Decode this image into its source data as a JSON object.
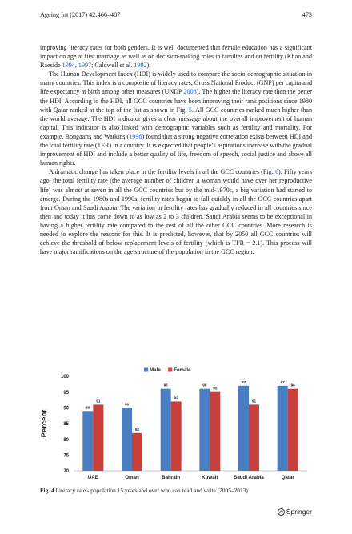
{
  "header": {
    "journal": "Ageing Int (2017) 42:466–487",
    "page": "473"
  },
  "paragraphs": [
    {
      "indent": false,
      "parts": [
        {
          "t": "improving literacy rates for both genders. It is well documented that female education has a significant impact on age at first marriage as well as on decision-making roles in families and on fertility (Khan and Raeside "
        },
        {
          "t": "1994",
          "link": true
        },
        {
          "t": ", "
        },
        {
          "t": "1997",
          "link": true
        },
        {
          "t": "; Caldwell et al. "
        },
        {
          "t": "1992",
          "link": true
        },
        {
          "t": ")."
        }
      ]
    },
    {
      "indent": true,
      "parts": [
        {
          "t": "The Human Development Index (HDI) is widely used to compare the socio-demographic situation in many countries. This index is a composite of literacy rates, Gross National Product (GNP) per capita and life expectancy at birth among other measures (UNDP "
        },
        {
          "t": "2008",
          "link": true
        },
        {
          "t": "). The higher the literacy rate then the better the HDI. According to the HDI, all GCC countries have been improving their rank positions since 1980 with Qatar ranked at the top of the list as shown in Fig. "
        },
        {
          "t": "5",
          "link": true
        },
        {
          "t": ". All GCC countries ranked much higher than the world average. The HDI indicator gives a clear message about the overall improvement of human capital. This indicator is also linked with demographic variables such as fertility and mortality. For example, Bongaarts and Watkins ("
        },
        {
          "t": "1996",
          "link": true
        },
        {
          "t": ") found that a strong negative correlation exists between HDI and the total fertility rate (TFR) in a country. It is expected that people’s aspirations increase with the gradual improvement of HDI and include a better quality of life, freedom of speech, social justice and above all human rights."
        }
      ]
    },
    {
      "indent": true,
      "parts": [
        {
          "t": "A dramatic change has taken place in the fertility levels in all the GCC countries (Fig. "
        },
        {
          "t": "6",
          "link": true
        },
        {
          "t": "). Fifty years ago, the total fertility rate (the average number of children a woman would have over her reproductive life) was almost at seven in all the GCC countries but by the mid-1970s, a big variation had started to emerge. During the 1980s and 1990s, fertility rates began to fall quickly in all the GCC countries apart from Oman and Saudi Arabia. The variation in fertility rates has gradually reduced in all countries since then and today it has come down to as low as 2 to 3 children. Saudi Arabia seems to be exceptional in having a higher fertility rate compared to the rest of all the other GCC countries. More research is needed to explore the reasons for this. It is predicted, however, that by 2050 all GCC countries will achieve the threshold of below replacement levels of fertility (which is TFR = 2.1). This process will have major ramifications on the age structure of the population in the GCC region."
        }
      ]
    }
  ],
  "colors": {
    "male": "#4a7ec2",
    "female": "#c8403c",
    "link": "#2a62b8"
  },
  "chart_data": {
    "type": "bar",
    "categories": [
      "UAE",
      "Oman",
      "Bahrain",
      "Kuwait",
      "Saudi Arabia",
      "Qatar"
    ],
    "series": [
      {
        "name": "Male",
        "values": [
          89,
          90,
          96,
          96,
          97,
          97
        ]
      },
      {
        "name": "Female",
        "values": [
          91,
          82,
          92,
          95,
          91,
          96
        ]
      }
    ],
    "title": "",
    "xlabel": "",
    "ylabel": "Percent",
    "ylim": [
      70,
      100
    ],
    "yticks": [
      70,
      75,
      80,
      85,
      90,
      95,
      100
    ],
    "grid": false,
    "legend": "top-center",
    "data_labels": true
  },
  "caption": {
    "label": "Fig. 4",
    "text": "Literacy rate - population 15 years and over who can read and write (2005–2013)"
  },
  "publisher": {
    "name": "Springer",
    "icon": "springer-horse-icon"
  }
}
